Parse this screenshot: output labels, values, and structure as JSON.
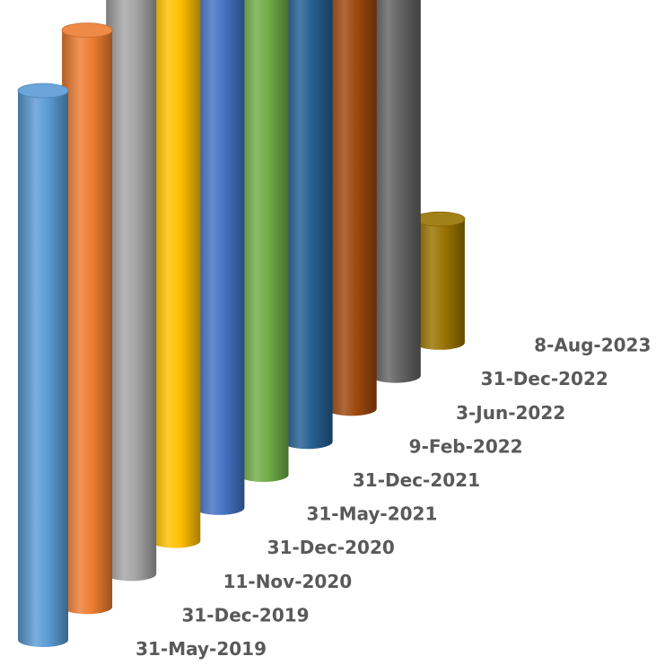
{
  "chart_data": {
    "type": "bar",
    "style": "3d-cylinder",
    "categories": [
      "31-May-2019",
      "31-Dec-2019",
      "11-Nov-2020",
      "31-Dec-2020",
      "31-May-2021",
      "31-Dec-2021",
      "9-Feb-2022",
      "3-Jun-2022",
      "31-Dec-2022",
      "8-Aug-2023"
    ],
    "values": [
      40,
      42,
      43,
      41,
      43,
      43,
      41,
      40,
      44,
      9
    ],
    "colors": [
      "#5b9bd5",
      "#ed7d31",
      "#a5a5a5",
      "#ffc000",
      "#4472c4",
      "#70ad47",
      "#255e91",
      "#9e480e",
      "#636363",
      "#997300"
    ],
    "ylim": [
      0,
      45
    ],
    "grid": false,
    "legend": "none"
  }
}
